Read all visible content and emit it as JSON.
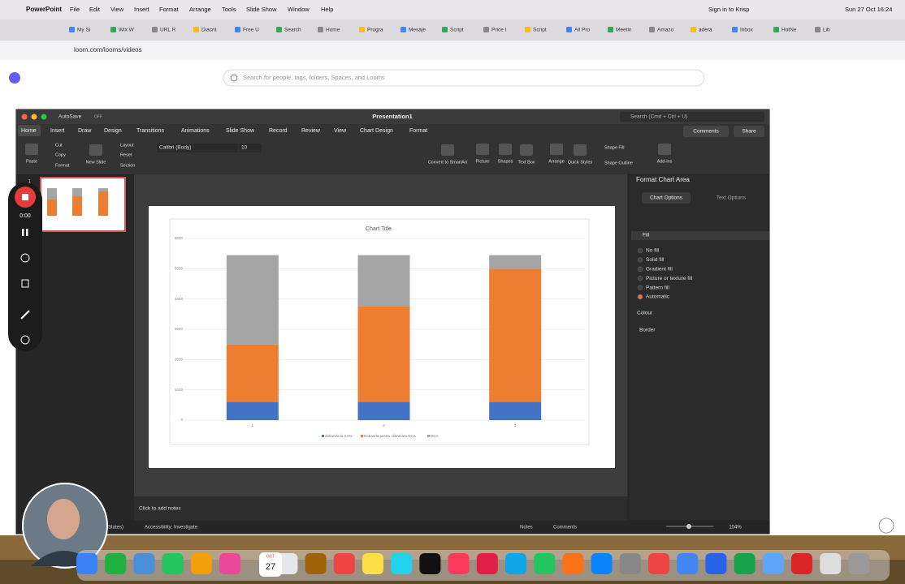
{
  "menu_bar": {
    "app": "PowerPoint",
    "items": [
      "File",
      "Edit",
      "View",
      "Insert",
      "Format",
      "Arrange",
      "Tools",
      "Slide Show",
      "Window",
      "Help"
    ],
    "krisp": "Sign in to Krisp",
    "clock": "Sun 27 Oct 16:24"
  },
  "browser": {
    "tabs": [
      "My Si",
      "Wix W",
      "URL R",
      "Diacrit",
      "Free U",
      "Search",
      "Home",
      "Progra",
      "Mesaje",
      "Script",
      "Price I",
      "Script",
      "All Pro",
      "Meetin",
      "Amazo",
      "adera",
      "Inbox",
      "HotNe",
      "Lib"
    ],
    "url": "loom.com/looms/videos"
  },
  "loom": {
    "search_placeholder": "Search for people, tags, folders, Spaces, and Looms",
    "timer": "0:00"
  },
  "powerpoint": {
    "title": "Presentation1",
    "autosave": "AutoSave",
    "autosave_state": "OFF",
    "search": "Search (Cmd + Ctrl + U)",
    "tabs": [
      "Home",
      "Insert",
      "Draw",
      "Design",
      "Transitions",
      "Animations",
      "Slide Show",
      "Record",
      "Review",
      "View",
      "Chart Design",
      "Format"
    ],
    "comments": "Comments",
    "share": "Share",
    "ribbon": [
      "Paste",
      "Cut",
      "Copy",
      "Format",
      "New Slide",
      "Layout",
      "Reset",
      "Section",
      "Convert to SmartArt",
      "Picture",
      "Shapes",
      "Text Box",
      "Arrange",
      "Quick Styles",
      "Shape Fill",
      "Shape Outline",
      "Add-ins"
    ],
    "font": "Calibri (Body)",
    "font_size": "10",
    "slide_number": "1",
    "notes_placeholder": "Click to add notes",
    "status_left": [
      "States)",
      "Accessibility: Investigate"
    ],
    "status_right": [
      "Notes",
      "Comments"
    ],
    "zoom": "104%"
  },
  "format_pane": {
    "title": "Format Chart Area",
    "tabs": [
      "Chart Options",
      "Text Options"
    ],
    "section": "Fill",
    "options": [
      "No fill",
      "Solid fill",
      "Gradient fill",
      "Picture or texture fill",
      "Pattern fill",
      "Automatic"
    ],
    "colour": "Colour",
    "border": "Border"
  },
  "dock": {
    "calendar_month": "OCT",
    "calendar_day": "27"
  },
  "chart_data": {
    "type": "bar",
    "stacked": true,
    "title": "Chart Title",
    "categories": [
      "1",
      "2",
      "3"
    ],
    "series": [
      {
        "name": "dobanda la 2.5%",
        "color": "#4472c4",
        "values": [
          600,
          600,
          600
        ]
      },
      {
        "name": "Dobanda pentru client fara DCA",
        "color": "#ed7d31",
        "values": [
          1900,
          3150,
          4400
        ]
      },
      {
        "name": "DCA",
        "color": "#a5a5a5",
        "values": [
          2950,
          1700,
          450
        ]
      }
    ],
    "ylim": [
      0,
      6000
    ],
    "yticks": [
      0,
      1000,
      2000,
      3000,
      4000,
      5000,
      6000
    ],
    "grid": true,
    "legend": "bottom"
  }
}
